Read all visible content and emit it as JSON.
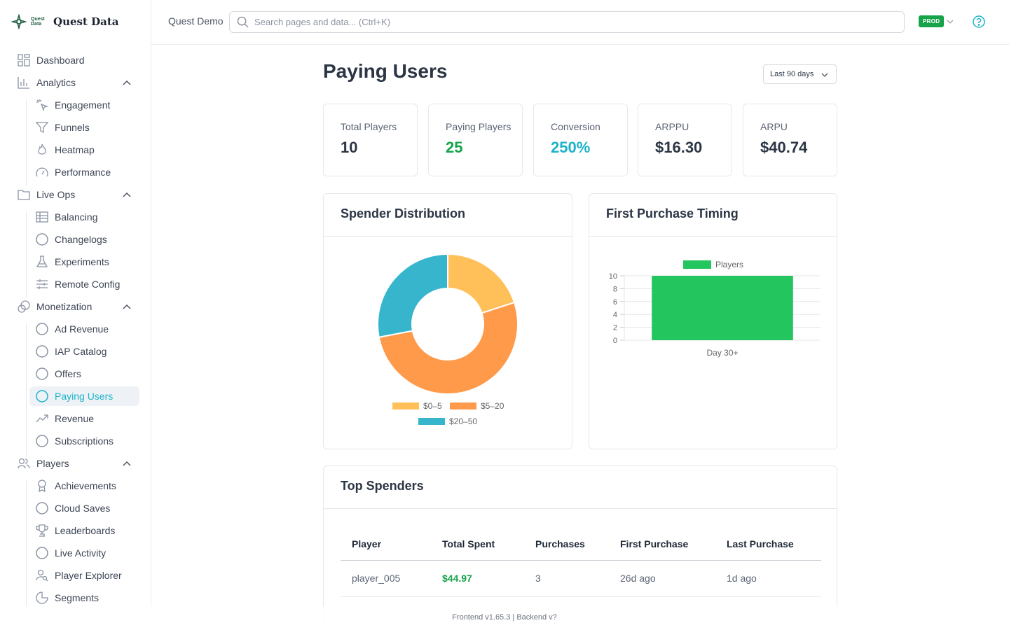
{
  "brand": {
    "logo_small": "Quest Data",
    "name": "Quest Data"
  },
  "topbar": {
    "project": "Quest Demo",
    "search_placeholder": "Search pages and data... (Ctrl+K)",
    "env": "PROD"
  },
  "sidebar": {
    "dashboard": "Dashboard",
    "analytics": {
      "label": "Analytics",
      "items": [
        "Engagement",
        "Funnels",
        "Heatmap",
        "Performance"
      ]
    },
    "liveops": {
      "label": "Live Ops",
      "items": [
        "Balancing",
        "Changelogs",
        "Experiments",
        "Remote Config"
      ]
    },
    "monetization": {
      "label": "Monetization",
      "items": [
        "Ad Revenue",
        "IAP Catalog",
        "Offers",
        "Paying Users",
        "Revenue",
        "Subscriptions"
      ]
    },
    "players": {
      "label": "Players",
      "items": [
        "Achievements",
        "Cloud Saves",
        "Leaderboards",
        "Live Activity",
        "Player Explorer",
        "Segments"
      ]
    }
  },
  "page": {
    "title": "Paying Users",
    "range": "Last 90 days"
  },
  "stats": [
    {
      "label": "Total Players",
      "value": "10",
      "color": "#2b3544"
    },
    {
      "label": "Paying Players",
      "value": "25",
      "color": "#16a34a"
    },
    {
      "label": "Conversion",
      "value": "250%",
      "color": "#1cb3c9"
    },
    {
      "label": "ARPPU",
      "value": "$16.30",
      "color": "#2b3544"
    },
    {
      "label": "ARPU",
      "value": "$40.74",
      "color": "#2b3544"
    }
  ],
  "spender_card": {
    "title": "Spender Distribution"
  },
  "timing_card": {
    "title": "First Purchase Timing"
  },
  "chart_data": [
    {
      "type": "pie",
      "title": "Spender Distribution",
      "categories": [
        "$0–5",
        "$5–20",
        "$20–50"
      ],
      "values": [
        20,
        52,
        28
      ],
      "colors": [
        "#ffc05a",
        "#ff9a4a",
        "#36b5cc"
      ],
      "donut": true,
      "legend": "bottom"
    },
    {
      "type": "bar",
      "title": "First Purchase Timing",
      "categories": [
        "Day 30+"
      ],
      "series": [
        {
          "name": "Players",
          "values": [
            10
          ],
          "color": "#22c55e"
        }
      ],
      "ylim": [
        0,
        10
      ],
      "yticks": [
        0,
        2,
        4,
        6,
        8,
        10
      ],
      "grid": true,
      "legend": "top"
    }
  ],
  "top_spenders": {
    "title": "Top Spenders",
    "columns": [
      "Player",
      "Total Spent",
      "Purchases",
      "First Purchase",
      "Last Purchase"
    ],
    "rows": [
      [
        "player_005",
        "$44.97",
        "3",
        "26d ago",
        "1d ago"
      ]
    ]
  },
  "footer": "Frontend v1.65.3 | Backend v?"
}
